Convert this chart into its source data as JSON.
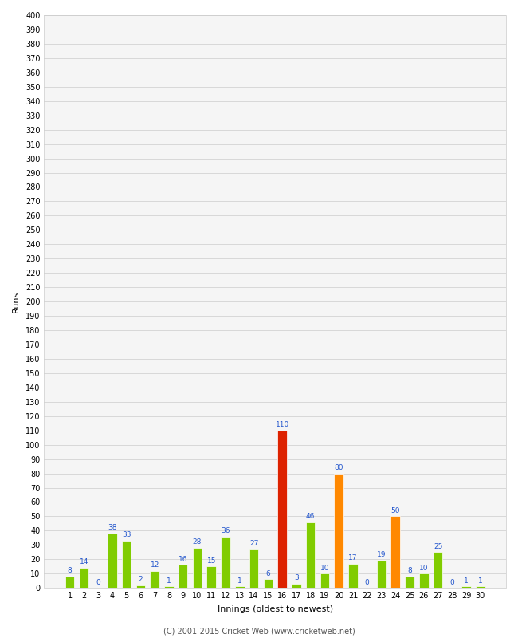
{
  "xlabel": "Innings (oldest to newest)",
  "ylabel": "Runs",
  "innings": [
    1,
    2,
    3,
    4,
    5,
    6,
    7,
    8,
    9,
    10,
    11,
    12,
    13,
    14,
    15,
    16,
    17,
    18,
    19,
    20,
    21,
    22,
    23,
    24,
    25,
    26,
    27,
    28,
    29,
    30
  ],
  "values": [
    8,
    14,
    0,
    38,
    33,
    2,
    12,
    1,
    16,
    28,
    15,
    36,
    1,
    27,
    6,
    110,
    3,
    46,
    10,
    80,
    17,
    0,
    19,
    50,
    8,
    10,
    25,
    0,
    1,
    1
  ],
  "colors": [
    "#80cc00",
    "#80cc00",
    "#80cc00",
    "#80cc00",
    "#80cc00",
    "#80cc00",
    "#80cc00",
    "#80cc00",
    "#80cc00",
    "#80cc00",
    "#80cc00",
    "#80cc00",
    "#80cc00",
    "#80cc00",
    "#80cc00",
    "#dd2200",
    "#80cc00",
    "#80cc00",
    "#80cc00",
    "#ff8800",
    "#80cc00",
    "#80cc00",
    "#80cc00",
    "#ff8800",
    "#80cc00",
    "#80cc00",
    "#80cc00",
    "#80cc00",
    "#80cc00",
    "#80cc00"
  ],
  "ylim": [
    0,
    400
  ],
  "yticks": [
    0,
    10,
    20,
    30,
    40,
    50,
    60,
    70,
    80,
    90,
    100,
    110,
    120,
    130,
    140,
    150,
    160,
    170,
    180,
    190,
    200,
    210,
    220,
    230,
    240,
    250,
    260,
    270,
    280,
    290,
    300,
    310,
    320,
    330,
    340,
    350,
    360,
    370,
    380,
    390,
    400
  ],
  "background_color": "#f5f5f5",
  "grid_color": "#cccccc",
  "label_color": "#2255cc",
  "footer": "(C) 2001-2015 Cricket Web (www.cricketweb.net)"
}
